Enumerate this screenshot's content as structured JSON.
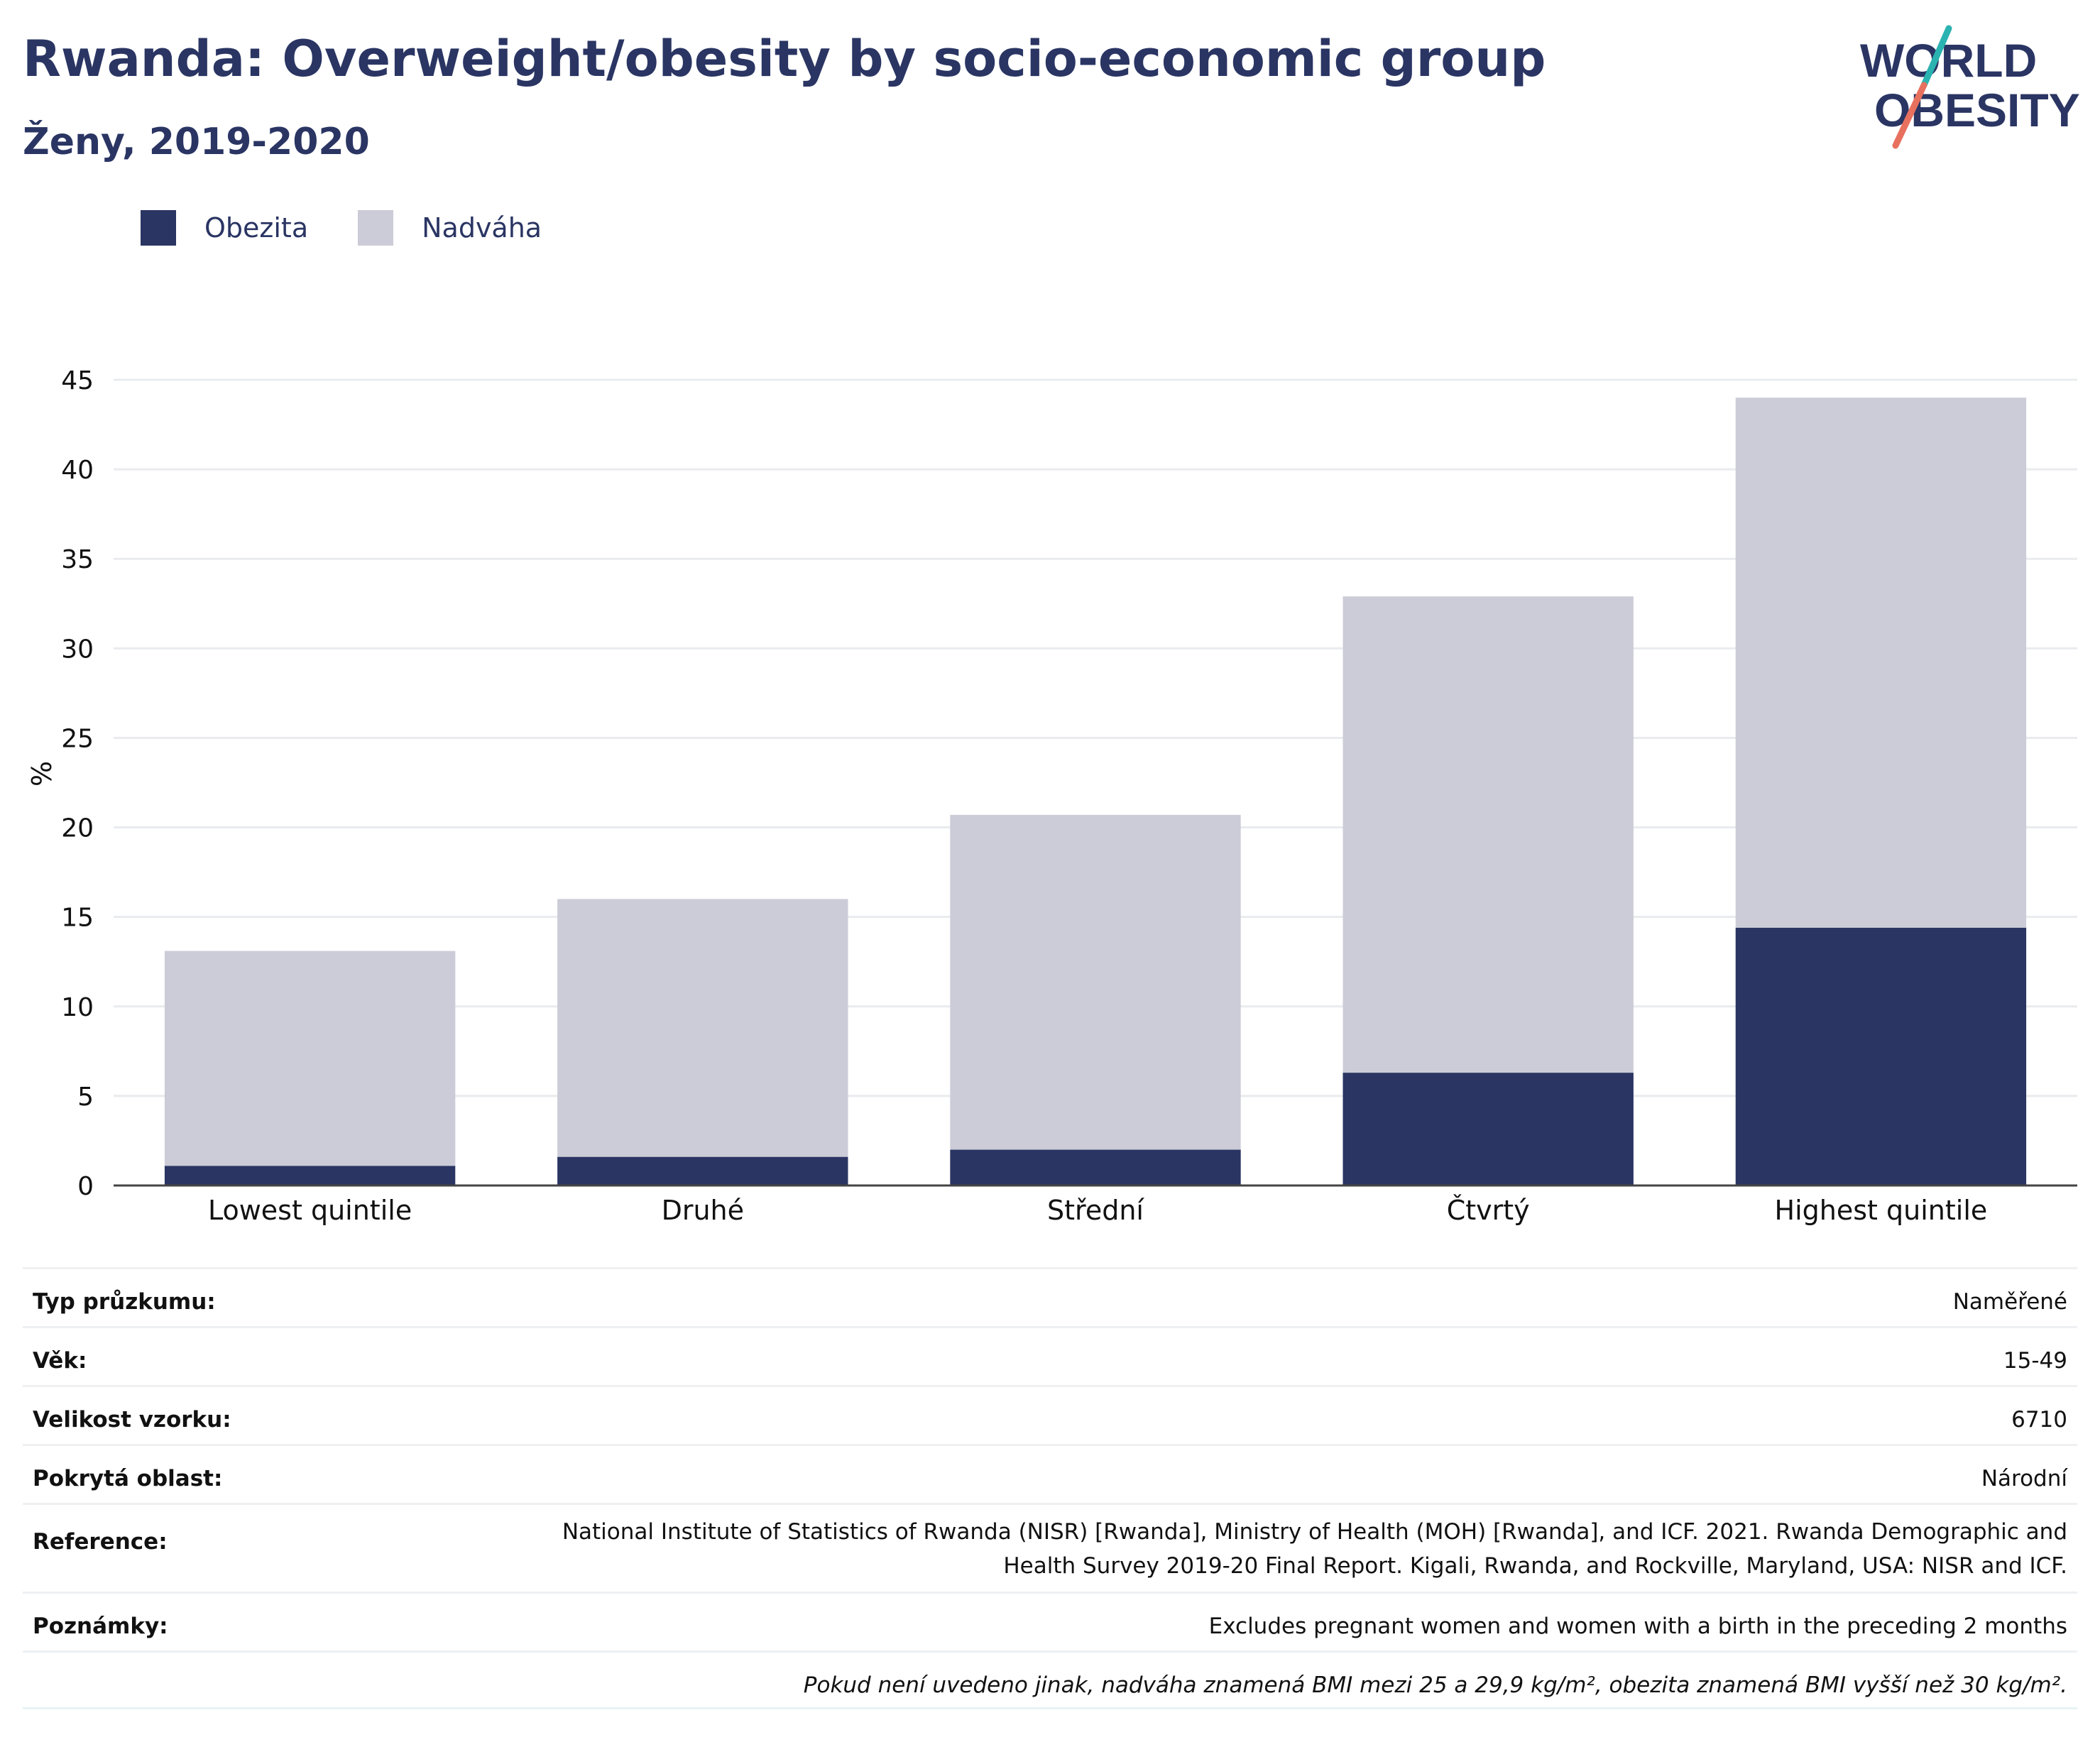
{
  "header": {
    "title": "Rwanda: Overweight/obesity by socio-economic group",
    "subtitle": "Ženy, 2019-2020"
  },
  "logo": {
    "line1": "WORLD",
    "line2": "OBESITY",
    "accent_colors": [
      "#2bb3b1",
      "#e8705f"
    ]
  },
  "legend": {
    "items": [
      {
        "label": "Obezita",
        "color": "#2a3563"
      },
      {
        "label": "Nadváha",
        "color": "#cbccd7"
      }
    ]
  },
  "chart_data": {
    "type": "bar",
    "stacked": true,
    "categories": [
      "Lowest quintile",
      "Druhé",
      "Střední",
      "Čtvrtý",
      "Highest quintile"
    ],
    "series": [
      {
        "name": "Obezita",
        "color": "#2a3563",
        "values": [
          1.1,
          1.6,
          2.0,
          6.3,
          14.4
        ]
      },
      {
        "name": "Nadváha",
        "color": "#cbccd7",
        "values": [
          12.0,
          14.4,
          18.7,
          26.6,
          29.6
        ]
      }
    ],
    "ylabel": "%",
    "ylim": [
      0,
      45
    ],
    "yticks": [
      0,
      5,
      10,
      15,
      20,
      25,
      30,
      35,
      40,
      45
    ],
    "grid": true,
    "legend_position": "top-left"
  },
  "meta": {
    "survey_type": {
      "label": "Typ průzkumu:",
      "value": "Naměřené"
    },
    "age": {
      "label": "Věk:",
      "value": "15-49"
    },
    "sample_size": {
      "label": "Velikost vzorku:",
      "value": "6710"
    },
    "coverage": {
      "label": "Pokrytá oblast:",
      "value": "Národní"
    },
    "reference": {
      "label": "Reference:",
      "value": "National Institute of Statistics of Rwanda (NISR) [Rwanda], Ministry of Health (MOH) [Rwanda], and ICF. 2021. Rwanda Demographic and Health Survey 2019-20 Final Report. Kigali, Rwanda, and Rockville, Maryland, USA: NISR and ICF."
    },
    "notes": {
      "label": "Poznámky:",
      "value": "Excludes pregnant women and women with a birth in the preceding 2 months"
    },
    "footnote": "Pokud není uvedeno jinak, nadváha znamená BMI mezi 25 a 29,9 kg/m², obezita znamená BMI vyšší než 30 kg/m²."
  }
}
